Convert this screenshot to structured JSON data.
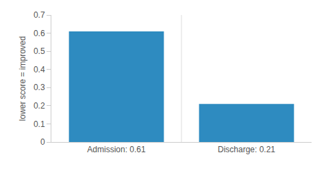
{
  "chart_data": {
    "type": "bar",
    "y_label": "lower score = improved",
    "categories": [
      "Admission: 0.61",
      "Discharge: 0.21"
    ],
    "values": [
      0.61,
      0.21
    ],
    "color": "#2e8bc0",
    "ylim": [
      0,
      0.7
    ],
    "yticks": [
      0,
      0.1,
      0.2,
      0.3,
      0.4,
      0.5,
      0.6,
      0.7
    ],
    "grid": true
  }
}
